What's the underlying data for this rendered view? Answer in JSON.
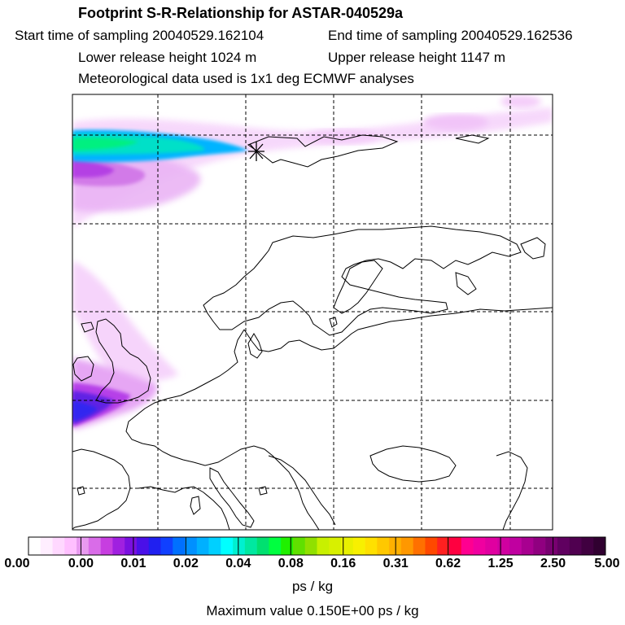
{
  "header": {
    "title": "Footprint S-R-Relationship for ASTAR-040529a",
    "start_time": "Start time of sampling 20040529.162104",
    "end_time": "End time of sampling 20040529.162536",
    "lower_height": "Lower release height 1024 m",
    "upper_height": "Upper release height 1147 m",
    "met_data": "Meteorological data used is 1x1 deg ECMWF analyses"
  },
  "map": {
    "receptor_marker": "asterisk-marker",
    "line_color": "#000000",
    "grid_style": "dashed"
  },
  "colorbar": {
    "tick_labels": [
      "0.00",
      "0.00",
      "0.01",
      "0.02",
      "0.04",
      "0.08",
      "0.16",
      "0.31",
      "0.62",
      "1.25",
      "2.50",
      "5.00"
    ],
    "colors": [
      "#ffffff",
      "#ffeeff",
      "#ffd8ff",
      "#ffc0ff",
      "#e89af0",
      "#d96ce8",
      "#c73ee0",
      "#a020e0",
      "#7a10e0",
      "#4a10e8",
      "#2020f0",
      "#1040ff",
      "#0070ff",
      "#0090ff",
      "#00b0ff",
      "#00d0ff",
      "#00ffff",
      "#00f0d0",
      "#00e8a0",
      "#00e070",
      "#00ff40",
      "#20f000",
      "#60e000",
      "#90e000",
      "#c8f000",
      "#d8f000",
      "#e8f000",
      "#f8f000",
      "#ffe000",
      "#ffc800",
      "#ffb000",
      "#ff9800",
      "#ff7000",
      "#ff4800",
      "#ff2020",
      "#ff0040",
      "#ff0090",
      "#f000a0",
      "#e000a0",
      "#d000a0",
      "#c000a0",
      "#a80090",
      "#900080",
      "#780070",
      "#600060",
      "#500050",
      "#400040",
      "#300030"
    ],
    "units": "ps / kg",
    "max_value": "Maximum value  0.150E+00 ps / kg"
  }
}
